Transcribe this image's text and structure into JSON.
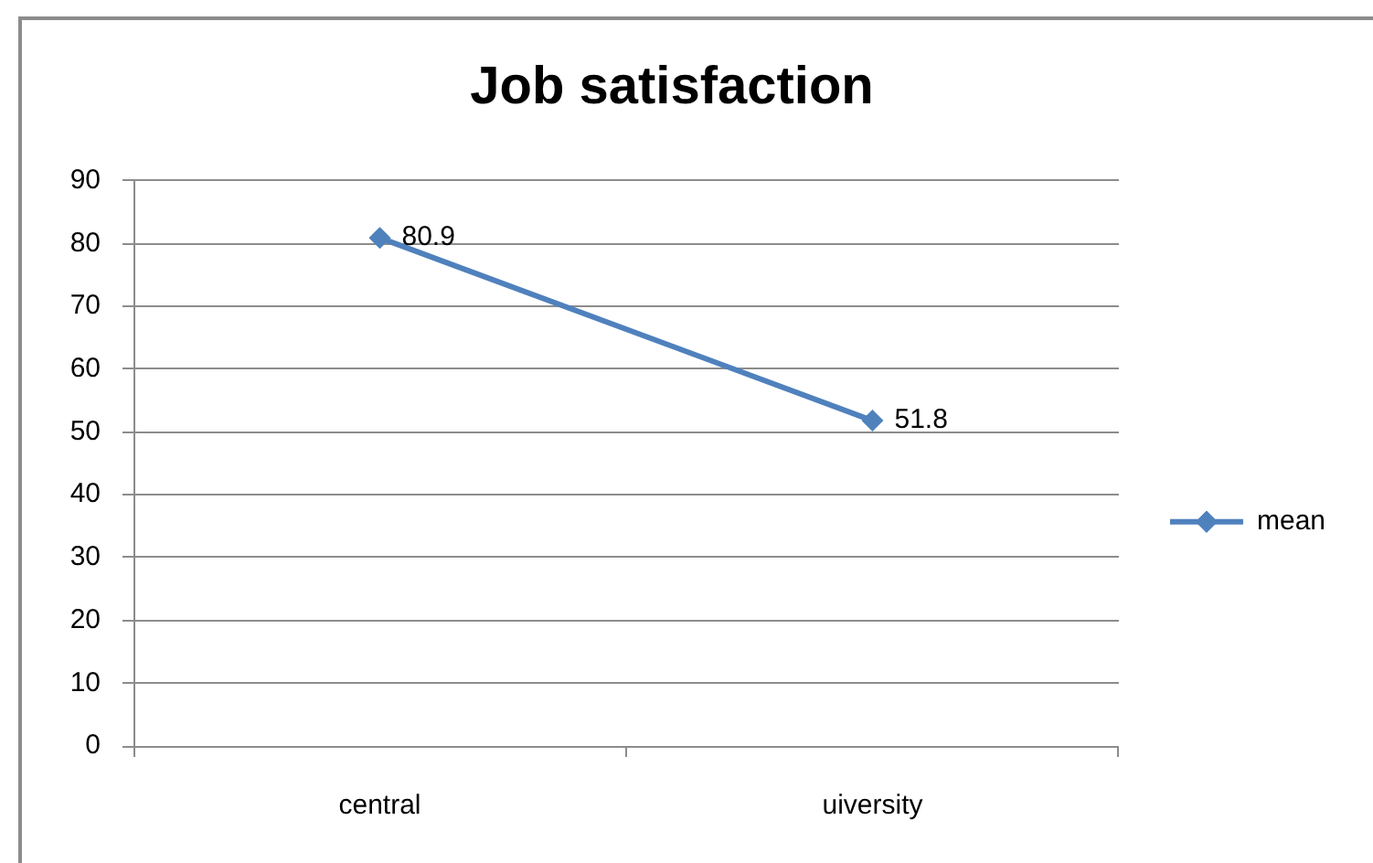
{
  "chart_data": {
    "type": "line",
    "title": "Job satisfaction",
    "categories": [
      "central",
      "uiversity"
    ],
    "series": [
      {
        "name": "mean",
        "color": "#4f81bd",
        "values": [
          80.9,
          51.8
        ]
      }
    ],
    "ylim": [
      0,
      90
    ],
    "yticks": [
      0,
      10,
      20,
      30,
      40,
      50,
      60,
      70,
      80,
      90
    ],
    "grid": "y",
    "legend": "right",
    "marker": "diamond",
    "line_style": "solid",
    "data_labels": true
  }
}
